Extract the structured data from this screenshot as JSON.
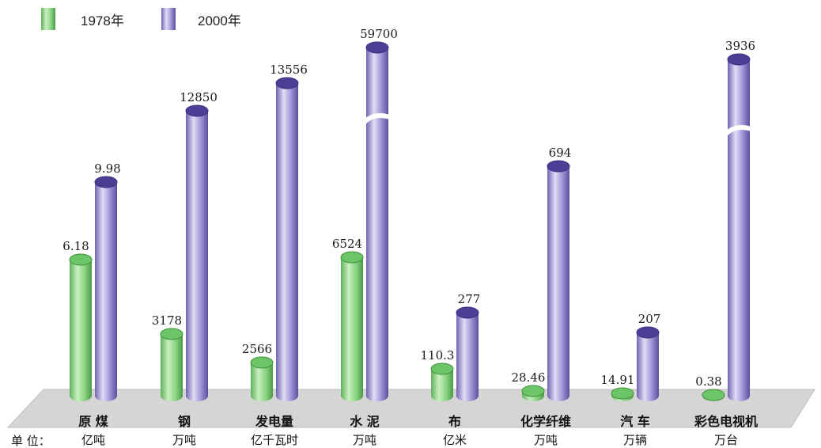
{
  "chart_data": {
    "type": "bar",
    "unit_prefix": "单 位：",
    "series": [
      {
        "name": "1978年",
        "color": "#7fd07a",
        "value_labels": [
          "6.18",
          "3178",
          "2566",
          "6524",
          "110.3",
          "28.46",
          "14.91",
          "0.38"
        ]
      },
      {
        "name": "2000年",
        "color": "#8f84cc",
        "value_labels": [
          "9.98",
          "12850",
          "13556",
          "59700",
          "277",
          "694",
          "207",
          "3936"
        ],
        "axis_break": [
          false,
          false,
          false,
          true,
          false,
          false,
          false,
          true
        ]
      }
    ],
    "categories": [
      {
        "name": "原 煤",
        "unit": "亿吨"
      },
      {
        "name": "钢",
        "unit": "万吨"
      },
      {
        "name": "发电量",
        "unit": "亿千瓦时"
      },
      {
        "name": "水 泥",
        "unit": "万吨"
      },
      {
        "name": "布",
        "unit": "亿米"
      },
      {
        "name": "化学纤维",
        "unit": "万吨"
      },
      {
        "name": "汽 车",
        "unit": "万辆"
      },
      {
        "name": "彩色电视机",
        "unit": "万台"
      }
    ]
  }
}
